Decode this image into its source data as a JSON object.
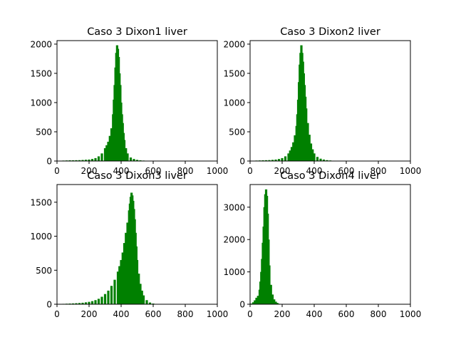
{
  "chart_data": [
    {
      "type": "bar",
      "title": "Caso 3 Dixon1 liver",
      "xlabel": "",
      "ylabel": "",
      "xlim": [
        0,
        1000
      ],
      "ylim": [
        0,
        2060
      ],
      "xticks": [
        0,
        200,
        400,
        600,
        800,
        1000
      ],
      "yticks": [
        0,
        500,
        1000,
        1500,
        2000
      ],
      "color": "#008000",
      "grid": false,
      "x": [
        20,
        40,
        60,
        80,
        100,
        120,
        140,
        160,
        180,
        200,
        220,
        240,
        260,
        280,
        300,
        310,
        320,
        330,
        340,
        350,
        355,
        360,
        365,
        370,
        375,
        380,
        385,
        390,
        395,
        400,
        405,
        410,
        415,
        420,
        430,
        440,
        460,
        480,
        500,
        520,
        540,
        560,
        580
      ],
      "values": [
        5,
        8,
        10,
        12,
        12,
        14,
        15,
        18,
        22,
        25,
        35,
        50,
        80,
        130,
        220,
        270,
        330,
        430,
        560,
        800,
        1050,
        1300,
        1600,
        1850,
        1980,
        1920,
        1780,
        1500,
        1300,
        1000,
        800,
        650,
        480,
        360,
        220,
        130,
        60,
        35,
        20,
        12,
        8,
        5,
        3
      ]
    },
    {
      "type": "bar",
      "title": "Caso 3 Dixon2 liver",
      "xlabel": "",
      "ylabel": "",
      "xlim": [
        0,
        1000
      ],
      "ylim": [
        0,
        2060
      ],
      "xticks": [
        0,
        200,
        400,
        600,
        800,
        1000
      ],
      "yticks": [
        0,
        500,
        1000,
        1500,
        2000
      ],
      "color": "#008000",
      "grid": false,
      "x": [
        20,
        40,
        60,
        80,
        100,
        120,
        140,
        160,
        180,
        200,
        220,
        240,
        250,
        260,
        270,
        280,
        290,
        295,
        300,
        305,
        310,
        315,
        320,
        325,
        330,
        335,
        340,
        345,
        350,
        360,
        370,
        380,
        390,
        400,
        420,
        440,
        460,
        480,
        500,
        520,
        540
      ],
      "values": [
        5,
        8,
        10,
        12,
        14,
        16,
        20,
        25,
        35,
        50,
        80,
        130,
        180,
        240,
        320,
        440,
        600,
        800,
        1050,
        1350,
        1650,
        1850,
        1980,
        1850,
        1700,
        1500,
        1300,
        1100,
        900,
        650,
        450,
        300,
        200,
        130,
        70,
        40,
        25,
        15,
        10,
        6,
        3
      ]
    },
    {
      "type": "bar",
      "title": "Caso 3 Dixon3 liver",
      "xlabel": "",
      "ylabel": "",
      "xlim": [
        0,
        1000
      ],
      "ylim": [
        0,
        1760
      ],
      "xticks": [
        0,
        200,
        400,
        600,
        800,
        1000
      ],
      "yticks": [
        0,
        500,
        1000,
        1500
      ],
      "color": "#008000",
      "grid": false,
      "x": [
        20,
        40,
        60,
        80,
        100,
        120,
        140,
        160,
        180,
        200,
        220,
        240,
        260,
        280,
        300,
        320,
        340,
        360,
        380,
        390,
        400,
        410,
        420,
        430,
        440,
        450,
        455,
        460,
        465,
        470,
        475,
        480,
        485,
        490,
        495,
        500,
        510,
        520,
        530,
        540,
        560,
        580,
        600,
        620
      ],
      "values": [
        4,
        6,
        8,
        10,
        12,
        15,
        18,
        22,
        28,
        35,
        45,
        60,
        80,
        110,
        150,
        200,
        270,
        360,
        480,
        560,
        650,
        760,
        900,
        1050,
        1200,
        1380,
        1480,
        1580,
        1640,
        1600,
        1520,
        1400,
        1250,
        1050,
        850,
        650,
        450,
        300,
        200,
        130,
        60,
        25,
        10,
        4
      ]
    },
    {
      "type": "bar",
      "title": "Caso 3 Dixon4 liver",
      "xlabel": "",
      "ylabel": "",
      "xlim": [
        0,
        1000
      ],
      "ylim": [
        0,
        3700
      ],
      "xticks": [
        0,
        200,
        400,
        600,
        800,
        1000
      ],
      "yticks": [
        0,
        1000,
        2000,
        3000
      ],
      "color": "#008000",
      "grid": false,
      "x": [
        10,
        20,
        30,
        40,
        50,
        60,
        65,
        70,
        75,
        80,
        85,
        90,
        95,
        100,
        105,
        110,
        115,
        120,
        130,
        140,
        150,
        160,
        170,
        180
      ],
      "values": [
        20,
        60,
        120,
        200,
        260,
        450,
        700,
        1000,
        1400,
        1900,
        2400,
        3000,
        3400,
        3550,
        3350,
        2800,
        2000,
        1200,
        600,
        300,
        150,
        80,
        40,
        15
      ]
    }
  ]
}
